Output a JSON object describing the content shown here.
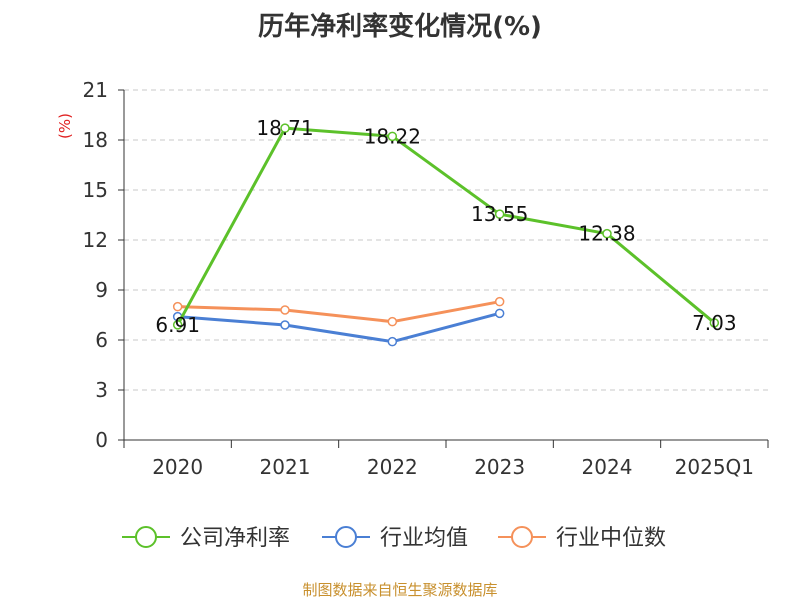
{
  "title": "历年净利率变化情况(%)",
  "source": "制图数据来自恒生聚源数据库",
  "chart_data": {
    "type": "line",
    "title": "历年净利率变化情况(%)",
    "ylabel": "(%)",
    "ylim": [
      0,
      21
    ],
    "yticks": [
      0,
      3,
      6,
      9,
      12,
      15,
      18,
      21
    ],
    "grid": true,
    "legend_position": "bottom",
    "categories": [
      "2020",
      "2021",
      "2022",
      "2023",
      "2024",
      "2025Q1"
    ],
    "series": [
      {
        "name": "公司净利率",
        "color": "#5cc12a",
        "show_labels": true,
        "values": [
          6.91,
          18.71,
          18.22,
          13.55,
          12.38,
          7.03
        ]
      },
      {
        "name": "行业均值",
        "color": "#4a7fd4",
        "show_labels": false,
        "values": [
          7.4,
          6.9,
          5.9,
          7.6,
          null,
          null
        ]
      },
      {
        "name": "行业中位数",
        "color": "#f5915a",
        "show_labels": false,
        "values": [
          8.0,
          7.8,
          7.1,
          8.3,
          null,
          null
        ]
      }
    ]
  }
}
